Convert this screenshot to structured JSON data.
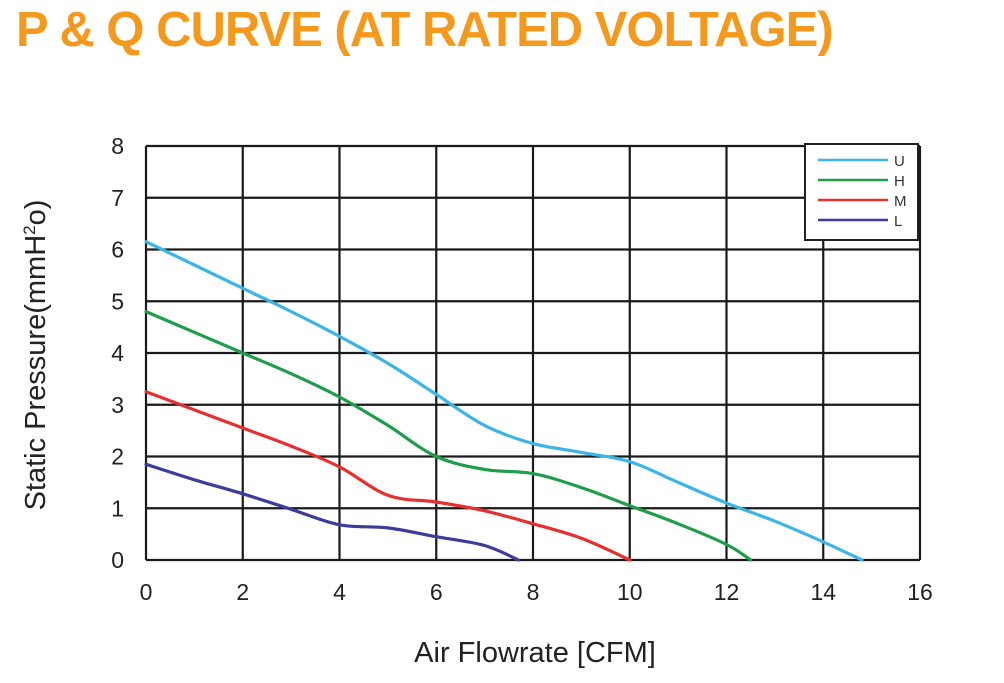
{
  "chart_data": {
    "type": "line",
    "title": "P & Q CURVE (AT RATED VOLTAGE)",
    "xlabel": "Air  Flowrate   [CFM]",
    "ylabel_main": "Static Pressure(mmH",
    "ylabel_sup": "2",
    "ylabel_end": "o)",
    "xlim": [
      0,
      16
    ],
    "ylim": [
      0,
      8
    ],
    "xticks": [
      "0",
      "2",
      "4",
      "6",
      "8",
      "10",
      "12",
      "14",
      "16"
    ],
    "yticks": [
      "0",
      "1",
      "2",
      "3",
      "4",
      "5",
      "6",
      "7",
      "8"
    ],
    "grid": true,
    "legend_position": "top-right",
    "series": [
      {
        "name": "U",
        "color": "#3bb4e8",
        "points": [
          [
            0,
            6.15
          ],
          [
            1,
            5.7
          ],
          [
            2,
            5.25
          ],
          [
            3,
            4.8
          ],
          [
            4,
            4.32
          ],
          [
            5,
            3.8
          ],
          [
            6,
            3.2
          ],
          [
            7,
            2.6
          ],
          [
            8,
            2.25
          ],
          [
            9,
            2.08
          ],
          [
            10,
            1.9
          ],
          [
            11,
            1.5
          ],
          [
            12,
            1.1
          ],
          [
            13,
            0.75
          ],
          [
            14,
            0.35
          ],
          [
            14.8,
            0
          ]
        ]
      },
      {
        "name": "H",
        "color": "#1e9e4a",
        "points": [
          [
            0,
            4.8
          ],
          [
            1,
            4.4
          ],
          [
            2,
            4.0
          ],
          [
            3,
            3.6
          ],
          [
            4,
            3.15
          ],
          [
            5,
            2.6
          ],
          [
            6,
            2.0
          ],
          [
            7,
            1.75
          ],
          [
            8,
            1.67
          ],
          [
            9,
            1.4
          ],
          [
            10,
            1.05
          ],
          [
            11,
            0.7
          ],
          [
            12,
            0.3
          ],
          [
            12.5,
            0
          ]
        ]
      },
      {
        "name": "M",
        "color": "#e53030",
        "points": [
          [
            0,
            3.25
          ],
          [
            1,
            2.9
          ],
          [
            2,
            2.55
          ],
          [
            3,
            2.2
          ],
          [
            4,
            1.8
          ],
          [
            5,
            1.25
          ],
          [
            6,
            1.12
          ],
          [
            7,
            0.95
          ],
          [
            8,
            0.7
          ],
          [
            9,
            0.42
          ],
          [
            10,
            0
          ]
        ]
      },
      {
        "name": "L",
        "color": "#3c3c9c",
        "points": [
          [
            0,
            1.85
          ],
          [
            1,
            1.55
          ],
          [
            2,
            1.28
          ],
          [
            3,
            0.98
          ],
          [
            4,
            0.68
          ],
          [
            5,
            0.62
          ],
          [
            6,
            0.45
          ],
          [
            7,
            0.28
          ],
          [
            7.7,
            0
          ]
        ]
      }
    ]
  }
}
